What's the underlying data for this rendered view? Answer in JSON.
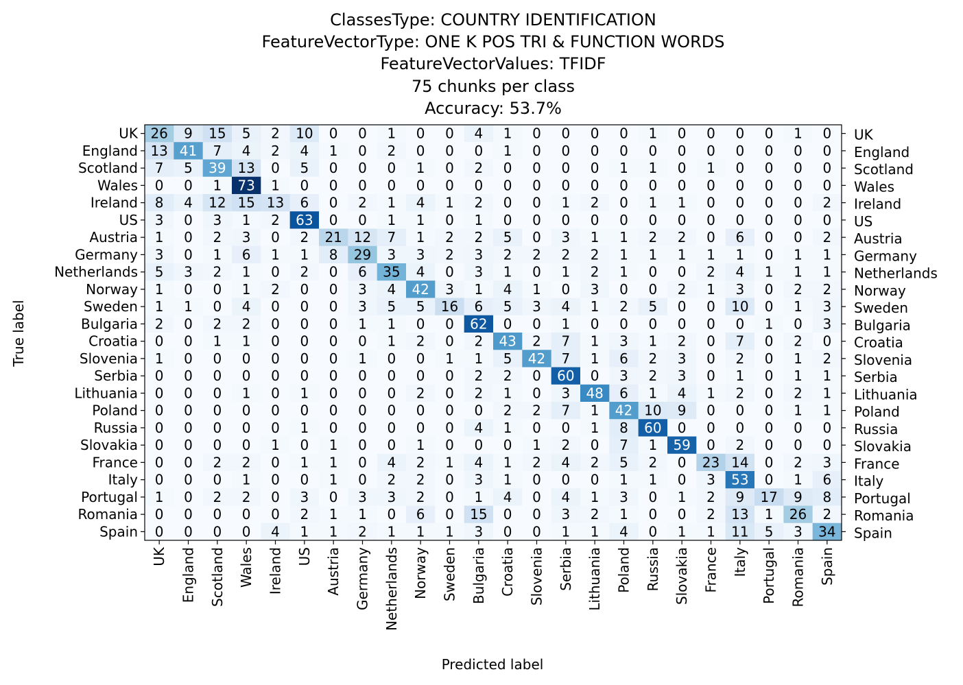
{
  "chart_data": {
    "type": "heatmap",
    "title_lines": [
      "ClassesType: COUNTRY IDENTIFICATION",
      "FeatureVectorType: ONE K POS TRI & FUNCTION WORDS",
      "FeatureVectorValues: TFIDF",
      "75 chunks per class",
      "Accuracy: 53.7%"
    ],
    "xlabel": "Predicted label",
    "ylabel": "True label",
    "colormap": "Blues",
    "vmin": 0,
    "vmax": 73,
    "categories": [
      "UK",
      "England",
      "Scotland",
      "Wales",
      "Ireland",
      "US",
      "Austria",
      "Germany",
      "Netherlands",
      "Norway",
      "Sweden",
      "Bulgaria",
      "Croatia",
      "Slovenia",
      "Serbia",
      "Lithuania",
      "Poland",
      "Russia",
      "Slovakia",
      "France",
      "Italy",
      "Portugal",
      "Romania",
      "Spain"
    ],
    "matrix": [
      [
        26,
        9,
        15,
        5,
        2,
        10,
        0,
        0,
        1,
        0,
        0,
        4,
        1,
        0,
        0,
        0,
        0,
        1,
        0,
        0,
        0,
        0,
        1,
        0
      ],
      [
        13,
        41,
        7,
        4,
        2,
        4,
        1,
        0,
        2,
        0,
        0,
        0,
        1,
        0,
        0,
        0,
        0,
        0,
        0,
        0,
        0,
        0,
        0,
        0
      ],
      [
        7,
        5,
        39,
        13,
        0,
        5,
        0,
        0,
        0,
        1,
        0,
        2,
        0,
        0,
        0,
        0,
        1,
        1,
        0,
        1,
        0,
        0,
        0,
        0
      ],
      [
        0,
        0,
        1,
        73,
        1,
        0,
        0,
        0,
        0,
        0,
        0,
        0,
        0,
        0,
        0,
        0,
        0,
        0,
        0,
        0,
        0,
        0,
        0,
        0
      ],
      [
        8,
        4,
        12,
        15,
        13,
        6,
        0,
        2,
        1,
        4,
        1,
        2,
        0,
        0,
        1,
        2,
        0,
        1,
        1,
        0,
        0,
        0,
        0,
        2
      ],
      [
        3,
        0,
        3,
        1,
        2,
        63,
        0,
        0,
        1,
        1,
        0,
        1,
        0,
        0,
        0,
        0,
        0,
        0,
        0,
        0,
        0,
        0,
        0,
        0
      ],
      [
        1,
        0,
        2,
        3,
        0,
        2,
        21,
        12,
        7,
        1,
        2,
        2,
        5,
        0,
        3,
        1,
        1,
        2,
        2,
        0,
        6,
        0,
        0,
        2
      ],
      [
        3,
        0,
        1,
        6,
        1,
        1,
        8,
        29,
        3,
        3,
        2,
        3,
        2,
        2,
        2,
        2,
        1,
        1,
        1,
        1,
        1,
        0,
        1,
        1
      ],
      [
        5,
        3,
        2,
        1,
        0,
        2,
        0,
        6,
        35,
        4,
        0,
        3,
        1,
        0,
        1,
        2,
        1,
        0,
        0,
        2,
        4,
        1,
        1,
        1
      ],
      [
        1,
        0,
        0,
        1,
        2,
        0,
        0,
        3,
        4,
        42,
        3,
        1,
        4,
        1,
        0,
        3,
        0,
        0,
        2,
        1,
        3,
        0,
        2,
        2
      ],
      [
        1,
        1,
        0,
        4,
        0,
        0,
        0,
        3,
        5,
        5,
        16,
        6,
        5,
        3,
        4,
        1,
        2,
        5,
        0,
        0,
        10,
        0,
        1,
        3
      ],
      [
        2,
        0,
        2,
        2,
        0,
        0,
        0,
        1,
        1,
        0,
        0,
        62,
        0,
        0,
        1,
        0,
        0,
        0,
        0,
        0,
        0,
        1,
        0,
        3
      ],
      [
        0,
        0,
        1,
        1,
        0,
        0,
        0,
        0,
        1,
        2,
        0,
        2,
        43,
        2,
        7,
        1,
        3,
        1,
        2,
        0,
        7,
        0,
        2,
        0
      ],
      [
        1,
        0,
        0,
        0,
        0,
        0,
        0,
        1,
        0,
        0,
        1,
        1,
        5,
        42,
        7,
        1,
        6,
        2,
        3,
        0,
        2,
        0,
        1,
        2
      ],
      [
        0,
        0,
        0,
        0,
        0,
        0,
        0,
        0,
        0,
        0,
        0,
        2,
        2,
        0,
        60,
        0,
        3,
        2,
        3,
        0,
        1,
        0,
        1,
        1
      ],
      [
        0,
        0,
        0,
        1,
        0,
        1,
        0,
        0,
        0,
        2,
        0,
        2,
        1,
        0,
        3,
        48,
        6,
        1,
        4,
        1,
        2,
        0,
        2,
        1
      ],
      [
        0,
        0,
        0,
        0,
        0,
        0,
        0,
        0,
        0,
        0,
        0,
        0,
        2,
        2,
        7,
        1,
        42,
        10,
        9,
        0,
        0,
        0,
        1,
        1
      ],
      [
        0,
        0,
        0,
        0,
        0,
        1,
        0,
        0,
        0,
        0,
        0,
        4,
        1,
        0,
        0,
        1,
        8,
        60,
        0,
        0,
        0,
        0,
        0,
        0
      ],
      [
        0,
        0,
        0,
        0,
        1,
        0,
        1,
        0,
        0,
        1,
        0,
        0,
        0,
        1,
        2,
        0,
        7,
        1,
        59,
        0,
        2,
        0,
        0,
        0
      ],
      [
        0,
        0,
        2,
        2,
        0,
        1,
        1,
        0,
        4,
        2,
        1,
        4,
        1,
        2,
        4,
        2,
        5,
        2,
        0,
        23,
        14,
        0,
        2,
        3
      ],
      [
        0,
        0,
        0,
        1,
        0,
        0,
        1,
        0,
        2,
        2,
        0,
        3,
        1,
        0,
        0,
        0,
        1,
        1,
        0,
        3,
        53,
        0,
        1,
        6
      ],
      [
        1,
        0,
        2,
        2,
        0,
        3,
        0,
        3,
        3,
        2,
        0,
        1,
        4,
        0,
        4,
        1,
        3,
        0,
        1,
        2,
        9,
        17,
        9,
        8
      ],
      [
        0,
        0,
        0,
        0,
        0,
        2,
        1,
        1,
        0,
        6,
        0,
        15,
        0,
        0,
        3,
        2,
        1,
        0,
        0,
        2,
        13,
        1,
        26,
        2
      ],
      [
        0,
        0,
        0,
        0,
        4,
        1,
        1,
        2,
        1,
        1,
        1,
        3,
        0,
        0,
        1,
        1,
        4,
        0,
        1,
        1,
        11,
        5,
        3,
        34
      ]
    ]
  }
}
